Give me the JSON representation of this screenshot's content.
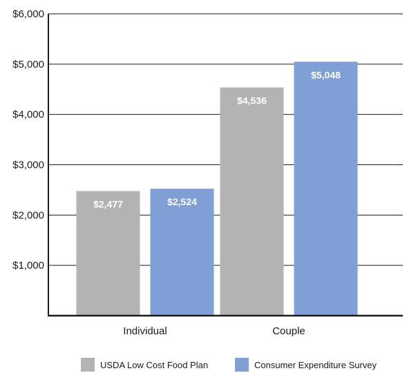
{
  "chart_data": {
    "type": "bar",
    "categories": [
      "Individual",
      "Couple"
    ],
    "series": [
      {
        "name": "USDA Low Cost Food Plan",
        "values": [
          2477,
          4536
        ],
        "labels": [
          "$2,477",
          "$4,536"
        ]
      },
      {
        "name": "Consumer Expenditure Survey",
        "values": [
          2524,
          5048
        ],
        "labels": [
          "$2,524",
          "$5,048"
        ]
      }
    ],
    "ylim": [
      0,
      6000
    ],
    "yticks": [
      0,
      1000,
      2000,
      3000,
      4000,
      5000,
      6000
    ],
    "ytick_labels": [
      "",
      "$1,000",
      "$2,000",
      "$3,000",
      "$4,000",
      "$5,000",
      "$6,000"
    ],
    "grid": "horizontal",
    "legend_position": "bottom",
    "title": "",
    "xlabel": "",
    "ylabel": ""
  },
  "colors": {
    "series": [
      "#b3b3b3",
      "#7f9fd6"
    ],
    "axis": "#1a1a1a",
    "grid": "#1a1a1a"
  }
}
